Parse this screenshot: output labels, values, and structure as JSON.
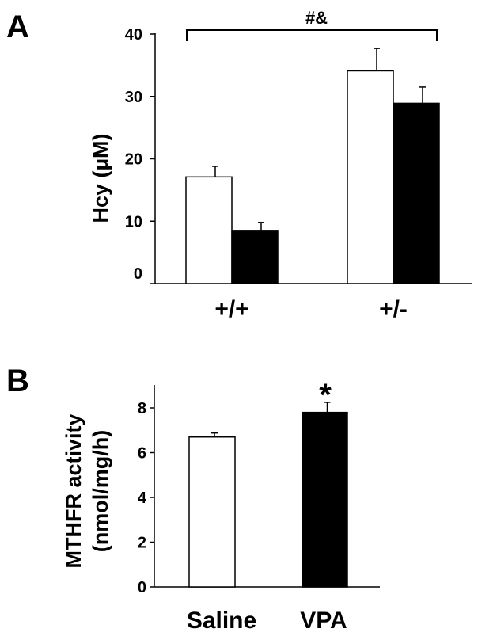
{
  "chart_data": [
    {
      "panel": "A",
      "type": "bar",
      "ylabel": "Hcy (µM)",
      "ylim": [
        0,
        40
      ],
      "yticks": [
        0,
        10,
        20,
        30,
        40
      ],
      "categories": [
        "+/+",
        "+/-"
      ],
      "series": [
        {
          "fill": "#ffffff",
          "values": [
            17.1,
            34.1
          ],
          "errors": [
            1.7,
            3.6
          ]
        },
        {
          "fill": "#000000",
          "values": [
            8.4,
            28.9
          ],
          "errors": [
            1.4,
            2.6
          ]
        }
      ],
      "annotation": "#&",
      "grid": false
    },
    {
      "panel": "B",
      "type": "bar",
      "ylabel": "MTHFR activity",
      "ylabel2": "(nmol/mg/h)",
      "ylim": [
        0,
        9
      ],
      "yticks": [
        0,
        2,
        4,
        6,
        8
      ],
      "categories": [
        "Saline",
        "VPA"
      ],
      "values": [
        6.7,
        7.8
      ],
      "errors": [
        0.18,
        0.45
      ],
      "fills": [
        "#ffffff",
        "#000000"
      ],
      "annotation": "*",
      "grid": false
    }
  ]
}
